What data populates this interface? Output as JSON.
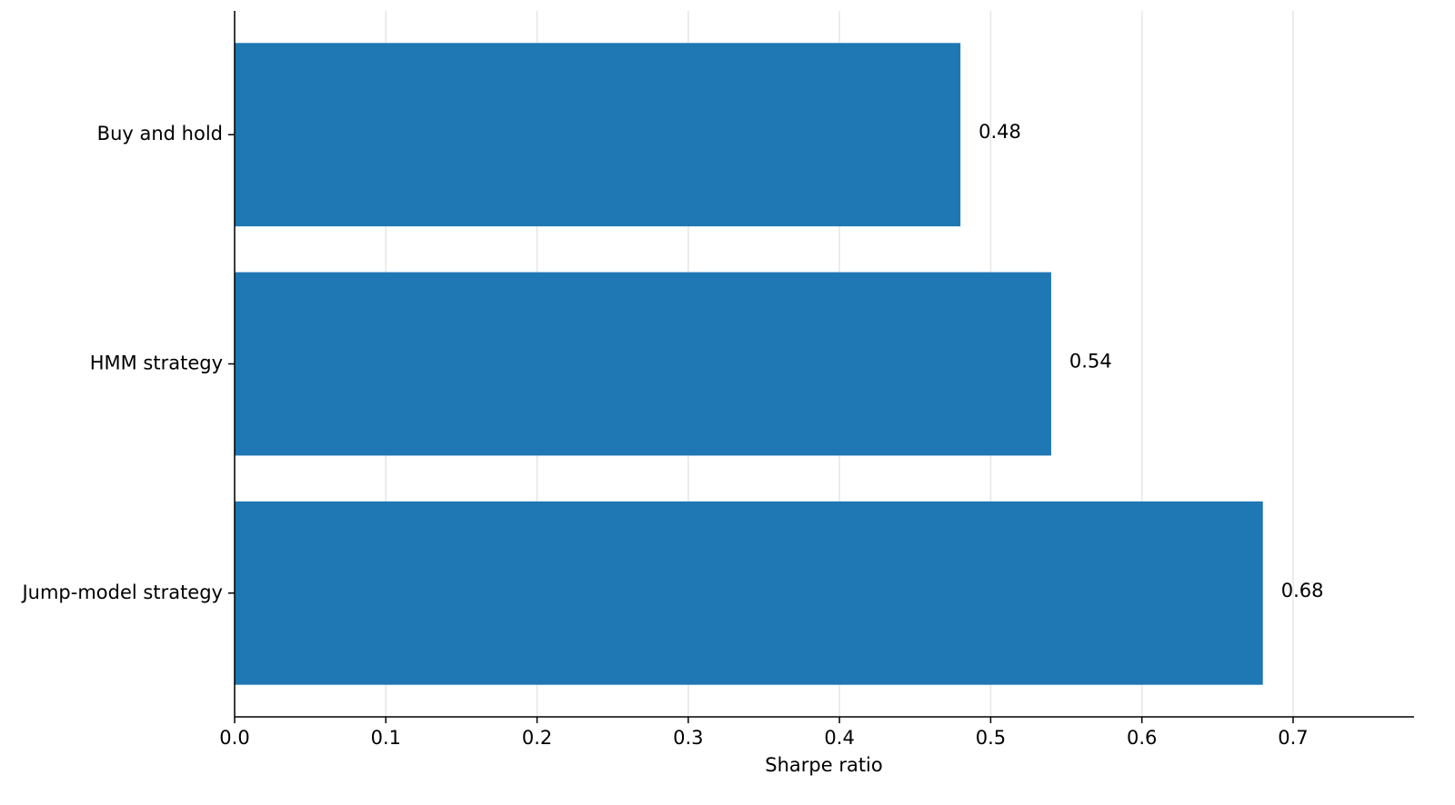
{
  "chart_data": {
    "type": "bar",
    "orientation": "horizontal",
    "xlabel": "Sharpe ratio",
    "categories": [
      "Buy and hold",
      "HMM strategy",
      "Jump-model strategy"
    ],
    "values": [
      0.48,
      0.54,
      0.68
    ],
    "color": "#1f77b4",
    "xlim": [
      0,
      0.78
    ],
    "xticks": [
      {
        "value": 0,
        "label": "0.0"
      },
      0.1,
      0.2,
      0.3,
      0.4,
      0.5,
      0.6,
      0.7
    ],
    "grid": true
  }
}
